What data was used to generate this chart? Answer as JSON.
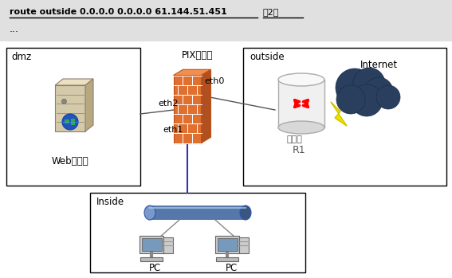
{
  "title_text": "route outside 0.0.0.0 0.0.0.0 61.144.51.451",
  "title_blank": "（2）",
  "ellipsis": "...",
  "bg_color": "#e8e8e8",
  "box_color": "#ffffff",
  "line_color": "#3333aa",
  "labels": {
    "dmz": "dmz",
    "web": "Web服务器",
    "pix": "PIX防火墙",
    "eth0": "eth0",
    "eth1": "eth1",
    "eth2": "eth2",
    "outside": "outside",
    "router": "路由器",
    "r1": "R1",
    "internet": "Internet",
    "inside": "Inside",
    "pc": "PC"
  },
  "title_fontsize": 8,
  "label_fontsize": 8
}
